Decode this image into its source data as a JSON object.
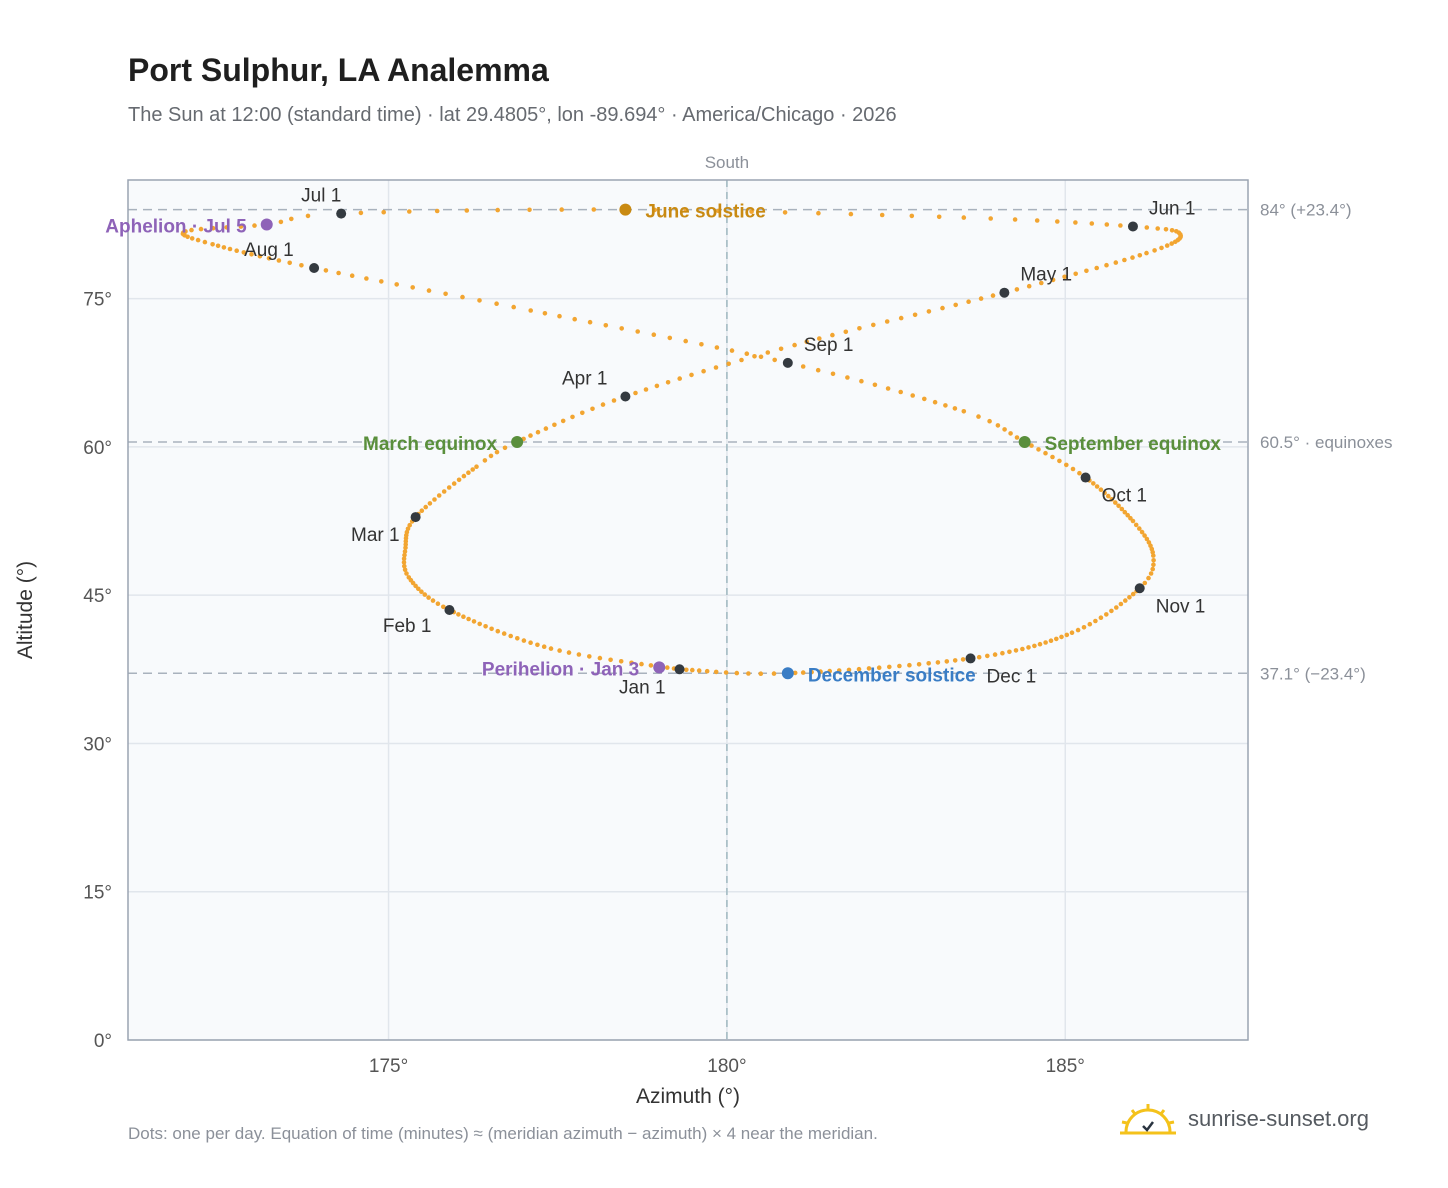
{
  "header": {
    "title": "Port Sulphur, LA Analemma",
    "subtitle": "The Sun at 12:00 (standard time) · lat 29.4805°, lon -89.694° · America/Chicago · 2026"
  },
  "footer": {
    "note": "Dots: one per day. Equation of time (minutes) ≈ (meridian azimuth − azimuth) × 4 near the meridian.",
    "brand": "sunrise-sunset.org"
  },
  "colors": {
    "curve": "#f2a531",
    "month_marker": "#343a40",
    "solstice_june": "#c98a12",
    "solstice_december": "#3a7dc5",
    "equinox": "#5a8f3c",
    "apsis": "#8e63b8",
    "plot_background": "#f8fafc"
  },
  "chart_data": {
    "type": "scatter",
    "title": "Port Sulphur, LA Analemma",
    "xlabel": "Azimuth (°)",
    "ylabel": "Altitude (°)",
    "xlim": [
      171.15,
      187.7
    ],
    "ylim": [
      0,
      87
    ],
    "x_ticks": [
      175,
      180,
      185
    ],
    "x_tick_labels": [
      "175°",
      "180°",
      "185°"
    ],
    "y_ticks": [
      0,
      15,
      30,
      45,
      60,
      75
    ],
    "y_tick_labels": [
      "0°",
      "15°",
      "30°",
      "45°",
      "60°",
      "75°"
    ],
    "grid": true,
    "meridian": {
      "azimuth": 180,
      "label": "South"
    },
    "reference_lines": [
      {
        "altitude": 84.0,
        "label": "84° (+23.4°)"
      },
      {
        "altitude": 60.5,
        "label": "60.5° · equinoxes"
      },
      {
        "altitude": 37.1,
        "label": "37.1° (−23.4°)"
      }
    ],
    "month_markers": [
      {
        "label": "Jan 1",
        "azimuth": 179.3,
        "altitude": 37.5
      },
      {
        "label": "Feb 1",
        "azimuth": 175.9,
        "altitude": 43.5
      },
      {
        "label": "Mar 1",
        "azimuth": 175.4,
        "altitude": 52.9
      },
      {
        "label": "Apr 1",
        "azimuth": 178.5,
        "altitude": 65.1
      },
      {
        "label": "May 1",
        "azimuth": 184.1,
        "altitude": 75.6
      },
      {
        "label": "Jun 1",
        "azimuth": 186.0,
        "altitude": 82.3
      },
      {
        "label": "Jul 1",
        "azimuth": 174.3,
        "altitude": 83.6
      },
      {
        "label": "Aug 1",
        "azimuth": 173.9,
        "altitude": 78.1
      },
      {
        "label": "Sep 1",
        "azimuth": 180.9,
        "altitude": 68.5
      },
      {
        "label": "Oct 1",
        "azimuth": 185.3,
        "altitude": 56.9
      },
      {
        "label": "Nov 1",
        "azimuth": 186.1,
        "altitude": 45.7
      },
      {
        "label": "Dec 1",
        "azimuth": 183.6,
        "altitude": 38.6
      }
    ],
    "events": [
      {
        "label": "June solstice",
        "azimuth": 178.5,
        "altitude": 84.0,
        "kind": "solstice_june"
      },
      {
        "label": "December solstice",
        "azimuth": 180.9,
        "altitude": 37.1,
        "kind": "solstice_december"
      },
      {
        "label": "March equinox",
        "azimuth": 176.9,
        "altitude": 60.5,
        "kind": "equinox"
      },
      {
        "label": "September equinox",
        "azimuth": 184.4,
        "altitude": 60.5,
        "kind": "equinox"
      },
      {
        "label": "Aphelion · Jul 5",
        "azimuth": 173.2,
        "altitude": 82.5,
        "kind": "apsis"
      },
      {
        "label": "Perihelion · Jan 3",
        "azimuth": 179.0,
        "altitude": 37.7,
        "kind": "apsis"
      }
    ],
    "daily_path_anchors": [
      {
        "date": "Jan 1",
        "azimuth": 179.3,
        "altitude": 37.5
      },
      {
        "date": "Jan 15",
        "azimuth": 177.4,
        "altitude": 39.6
      },
      {
        "date": "Feb 1",
        "azimuth": 175.9,
        "altitude": 43.5
      },
      {
        "date": "Feb 12",
        "azimuth": 175.3,
        "altitude": 46.8
      },
      {
        "date": "Feb 20",
        "azimuth": 175.25,
        "altitude": 49.8
      },
      {
        "date": "Mar 1",
        "azimuth": 175.4,
        "altitude": 52.9
      },
      {
        "date": "Mar 15",
        "azimuth": 176.3,
        "altitude": 58.0
      },
      {
        "date": "Mar 20",
        "azimuth": 176.9,
        "altitude": 60.5
      },
      {
        "date": "Apr 1",
        "azimuth": 178.5,
        "altitude": 65.1
      },
      {
        "date": "Apr 15",
        "azimuth": 181.0,
        "altitude": 70.3
      },
      {
        "date": "May 1",
        "azimuth": 184.1,
        "altitude": 75.6
      },
      {
        "date": "May 15",
        "azimuth": 186.2,
        "altitude": 79.6
      },
      {
        "date": "May 25",
        "azimuth": 186.7,
        "altitude": 81.5
      },
      {
        "date": "Jun 1",
        "azimuth": 186.0,
        "altitude": 82.3
      },
      {
        "date": "Jun 10",
        "azimuth": 183.5,
        "altitude": 83.2
      },
      {
        "date": "Jun 21",
        "azimuth": 178.5,
        "altitude": 84.0
      },
      {
        "date": "Jul 1",
        "azimuth": 174.3,
        "altitude": 83.6
      },
      {
        "date": "Jul 5",
        "azimuth": 173.2,
        "altitude": 82.5
      },
      {
        "date": "Jul 12",
        "azimuth": 172.0,
        "altitude": 81.8
      },
      {
        "date": "Jul 20",
        "azimuth": 172.4,
        "altitude": 80.5
      },
      {
        "date": "Aug 1",
        "azimuth": 173.9,
        "altitude": 78.1
      },
      {
        "date": "Aug 15",
        "azimuth": 177.1,
        "altitude": 73.8
      },
      {
        "date": "Sep 1",
        "azimuth": 180.9,
        "altitude": 68.5
      },
      {
        "date": "Sep 15",
        "azimuth": 183.5,
        "altitude": 63.6
      },
      {
        "date": "Sep 22",
        "azimuth": 184.4,
        "altitude": 60.5
      },
      {
        "date": "Oct 1",
        "azimuth": 185.3,
        "altitude": 56.9
      },
      {
        "date": "Oct 15",
        "azimuth": 186.0,
        "altitude": 52.5
      },
      {
        "date": "Oct 25",
        "azimuth": 186.3,
        "altitude": 49.0
      },
      {
        "date": "Nov 1",
        "azimuth": 186.1,
        "altitude": 45.7
      },
      {
        "date": "Nov 15",
        "azimuth": 185.1,
        "altitude": 41.2
      },
      {
        "date": "Dec 1",
        "azimuth": 183.6,
        "altitude": 38.6
      },
      {
        "date": "Dec 21",
        "azimuth": 180.9,
        "altitude": 37.1
      },
      {
        "date": "Dec 31",
        "azimuth": 179.4,
        "altitude": 37.45
      }
    ]
  }
}
